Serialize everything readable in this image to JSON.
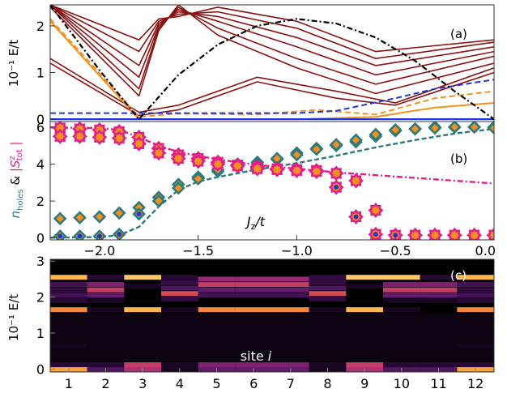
{
  "chart_data": [
    {
      "panel": "(a)",
      "type": "line",
      "ylabel": "10⁻¹ E/t",
      "xlim": [
        -2.25,
        0.0
      ],
      "ylim": [
        -0.05,
        2.45
      ],
      "yticks": [
        0,
        1,
        2
      ],
      "colors": {
        "spectrum": "#8b1010",
        "orange": "#f5901e",
        "blue": "#1f35d6",
        "black": "#000000"
      },
      "series": [
        {
          "style": "spectrum",
          "x": [
            -2.25,
            -1.8,
            -1.7,
            -1.6,
            -1.4,
            -1.0,
            -0.6,
            0.0
          ],
          "y": [
            2.4,
            0.5,
            1.9,
            2.45,
            1.8,
            1.1,
            0.55,
            1.2
          ]
        },
        {
          "style": "spectrum",
          "x": [
            -2.25,
            -1.8,
            -1.7,
            -1.6,
            -1.4,
            -1.0,
            -0.6,
            0.0
          ],
          "y": [
            2.45,
            0.65,
            1.95,
            2.4,
            1.95,
            1.3,
            0.75,
            1.35
          ]
        },
        {
          "style": "spectrum",
          "x": [
            -2.25,
            -1.8,
            -1.7,
            -1.6,
            -1.4,
            -1.0,
            -0.6,
            0.0
          ],
          "y": [
            2.45,
            0.9,
            2.0,
            2.35,
            2.1,
            1.55,
            0.95,
            1.45
          ]
        },
        {
          "style": "spectrum",
          "x": [
            -2.25,
            -1.8,
            -1.7,
            -1.6,
            -1.4,
            -1.0,
            -0.6,
            0.0
          ],
          "y": [
            2.45,
            1.15,
            2.05,
            2.3,
            2.2,
            1.75,
            1.15,
            1.55
          ]
        },
        {
          "style": "spectrum",
          "x": [
            -2.25,
            -1.8,
            -1.7,
            -1.6,
            -1.4,
            -1.0,
            -0.6,
            0.0
          ],
          "y": [
            2.45,
            1.45,
            2.1,
            2.25,
            2.3,
            1.95,
            1.3,
            1.65
          ]
        },
        {
          "style": "spectrum",
          "x": [
            -2.25,
            -1.8,
            -1.7,
            -1.6,
            -1.4,
            -1.0,
            -0.6,
            0.0
          ],
          "y": [
            2.45,
            1.7,
            2.15,
            2.2,
            2.4,
            2.1,
            1.45,
            1.7
          ]
        },
        {
          "style": "spectrum",
          "x": [
            -2.25,
            -1.8,
            -1.6,
            -1.2,
            -0.8,
            -0.5,
            0.0
          ],
          "y": [
            1.2,
            0.08,
            0.2,
            0.8,
            0.45,
            0.3,
            1.0
          ]
        },
        {
          "style": "spectrum",
          "x": [
            -2.25,
            -1.8,
            -1.6,
            -1.2,
            -0.8,
            -0.5,
            0.0
          ],
          "y": [
            1.3,
            0.15,
            0.3,
            0.9,
            0.6,
            0.35,
            1.1
          ]
        },
        {
          "style": "orange",
          "x": [
            -2.25,
            -1.8,
            -1.5,
            -1.0,
            -0.6,
            -0.3,
            0.0
          ],
          "y": [
            2.1,
            0.0,
            0.0,
            0.0,
            0.05,
            0.25,
            0.35
          ]
        },
        {
          "style": "orange-dashed",
          "x": [
            -2.25,
            -1.8,
            -1.6,
            -1.2,
            -0.9,
            -0.6,
            -0.3,
            0.0
          ],
          "y": [
            2.15,
            0.05,
            0.12,
            0.1,
            0.2,
            0.1,
            0.45,
            0.6
          ]
        },
        {
          "style": "blue",
          "x": [
            -2.25,
            0.0
          ],
          "y": [
            0.0,
            0.0
          ]
        },
        {
          "style": "blue-dashed",
          "x": [
            -2.25,
            -1.0,
            -0.8,
            -0.5,
            -0.3,
            0.0
          ],
          "y": [
            0.13,
            0.13,
            0.18,
            0.45,
            0.65,
            0.85
          ]
        },
        {
          "style": "black-dashdot",
          "x": [
            -2.25,
            -2.0,
            -1.8,
            -1.6,
            -1.4,
            -1.2,
            -1.0,
            -0.8,
            -0.6,
            -0.4,
            -0.2,
            0.0
          ],
          "y": [
            2.45,
            1.05,
            0.0,
            0.95,
            1.6,
            2.0,
            2.15,
            2.05,
            1.75,
            1.25,
            0.6,
            0.0
          ]
        }
      ]
    },
    {
      "panel": "(b)",
      "type": "scatter",
      "ylabel_parts": [
        "n",
        "holes",
        " & ",
        "|S",
        "z",
        "tot",
        "|"
      ],
      "xlabel": "J_z/t",
      "xlim": [
        -2.25,
        0.0
      ],
      "ylim": [
        -0.1,
        6.3
      ],
      "yticks": [
        0,
        2,
        4,
        6
      ],
      "xticks": [
        -2.0,
        -1.5,
        -1.0,
        -0.5,
        0.0
      ],
      "xticklabels": [
        "−2.0",
        "−1.5",
        "−1.0",
        "−0.5",
        "0.0"
      ],
      "colors": {
        "diamond": "#2e7a7a",
        "diamondFill": "#f5901e",
        "star": "#e0208a",
        "starFill": "#f5901e",
        "blueDot": "#1f35d6",
        "tealLine": "#2e7a7a",
        "pinkLine": "#e0208a"
      },
      "series": [
        {
          "name": "n_holes",
          "marker": "diamond",
          "x": [
            -2.2,
            -2.1,
            -2.0,
            -1.9,
            -1.8,
            -1.7,
            -1.6,
            -1.5,
            -1.4,
            -1.3,
            -1.2,
            -1.1,
            -1.0,
            -0.9,
            -0.8,
            -0.7,
            -0.6,
            -0.5,
            -0.4,
            -0.3,
            -0.2,
            -0.1,
            0.0
          ],
          "y": [
            1.05,
            1.1,
            1.15,
            1.35,
            1.65,
            2.2,
            2.9,
            3.3,
            3.6,
            4.0,
            4.1,
            4.25,
            4.6,
            4.85,
            5.0,
            5.2,
            5.5,
            5.8,
            5.9,
            6.0,
            6.0,
            6.0,
            6.0
          ]
        },
        {
          "name": "n_holes_ground",
          "marker": "diamond",
          "x": [
            -2.2,
            -2.1,
            -2.0,
            -1.9,
            -1.8,
            -1.7,
            -1.6,
            -1.5,
            -1.4,
            -1.3,
            -1.2,
            -1.1,
            -1.0,
            -0.9,
            -0.8,
            -0.7,
            -0.6,
            -0.5,
            -0.4,
            -0.3,
            -0.2,
            -0.1,
            0.0
          ],
          "y": [
            0.1,
            0.1,
            0.1,
            0.2,
            1.3,
            2.0,
            2.7,
            3.2,
            3.7,
            3.9,
            4.0,
            4.3,
            4.5,
            4.8,
            5.05,
            5.3,
            5.6,
            5.85,
            5.9,
            5.95,
            6.0,
            6.0,
            5.95
          ]
        },
        {
          "name": "Sz_tot",
          "marker": "star",
          "x": [
            -2.2,
            -2.1,
            -2.0,
            -1.9,
            -1.8,
            -1.7,
            -1.6,
            -1.5,
            -1.4,
            -1.3,
            -1.2,
            -1.1,
            -1.0,
            -0.9,
            -0.8,
            -0.7,
            -0.6,
            -0.5,
            -0.4,
            -0.3,
            -0.2,
            -0.1,
            0.0
          ],
          "y": [
            5.95,
            5.9,
            5.85,
            5.75,
            5.45,
            4.85,
            4.5,
            4.3,
            4.1,
            3.95,
            3.85,
            3.75,
            3.7,
            3.65,
            3.5,
            3.1,
            1.5,
            0.15,
            0.15,
            0.15,
            0.15,
            0.15,
            0.15
          ]
        },
        {
          "name": "Sz_tot_ground",
          "marker": "star",
          "x": [
            -2.2,
            -2.1,
            -2.0,
            -1.9,
            -1.8,
            -1.7,
            -1.6,
            -1.5,
            -1.4,
            -1.3,
            -1.2,
            -1.1,
            -1.0,
            -0.9,
            -0.8,
            -0.7,
            -0.6,
            -0.5,
            -0.4,
            -0.3,
            -0.2,
            -0.1,
            0.0
          ],
          "y": [
            5.5,
            5.5,
            5.45,
            5.4,
            5.1,
            4.6,
            4.3,
            4.15,
            4.0,
            3.9,
            3.75,
            3.7,
            3.65,
            3.6,
            2.75,
            1.15,
            0.2,
            0.15,
            0.15,
            0.15,
            0.15,
            0.15,
            0.15
          ]
        },
        {
          "name": "n_holes_line",
          "line": "tealDashed",
          "x": [
            -2.25,
            -2.0,
            -1.9,
            -1.8,
            -1.7,
            -1.6,
            -1.5,
            -1.4,
            -1.2,
            -1.0,
            -0.8,
            -0.6,
            -0.4,
            -0.2,
            0.0
          ],
          "y": [
            0.02,
            0.05,
            0.15,
            0.6,
            1.7,
            2.6,
            3.05,
            3.3,
            3.7,
            4.05,
            4.45,
            4.9,
            5.3,
            5.65,
            5.9
          ]
        },
        {
          "name": "Sz_line",
          "line": "pinkDashDot",
          "x": [
            -2.25,
            -2.0,
            -1.9,
            -1.8,
            -1.7,
            -1.6,
            -1.4,
            -1.2,
            -1.0,
            -0.8,
            -0.6,
            -0.4,
            -0.2,
            0.0
          ],
          "y": [
            5.98,
            5.95,
            5.85,
            5.45,
            5.0,
            4.65,
            4.25,
            3.95,
            3.75,
            3.55,
            3.4,
            3.25,
            3.1,
            2.95
          ]
        }
      ]
    },
    {
      "panel": "(c)",
      "type": "heatmap",
      "ylabel": "10⁻¹ E/t",
      "xlabel": "site i",
      "xticks": [
        1,
        2,
        3,
        4,
        5,
        6,
        7,
        8,
        9,
        10,
        11,
        12
      ],
      "yticks": [
        0,
        1,
        2,
        3
      ],
      "ylim": [
        -0.08,
        3.05
      ],
      "colormap": [
        "#000000",
        "#2a0a3a",
        "#5a1a6a",
        "#b0307a",
        "#e8603a",
        "#ffb040",
        "#ffe8a0"
      ],
      "columns": [
        {
          "site": 1,
          "bands": [
            [
              0.0,
              0.8
            ],
            [
              0.12,
              0.15
            ],
            [
              0.65,
              0.08
            ],
            [
              1.65,
              0.75
            ],
            [
              1.9,
              0.15
            ],
            [
              2.05,
              0.25
            ],
            [
              2.2,
              0.2
            ],
            [
              2.35,
              0.25
            ],
            [
              2.55,
              0.85
            ]
          ]
        },
        {
          "site": 2,
          "bands": [
            [
              0.0,
              0.3
            ],
            [
              0.12,
              0.15
            ],
            [
              1.65,
              0.1
            ],
            [
              1.9,
              0.1
            ],
            [
              2.05,
              0.35
            ],
            [
              2.2,
              0.55
            ],
            [
              2.35,
              0.4
            ],
            [
              2.55,
              0.15
            ]
          ]
        },
        {
          "site": 3,
          "bands": [
            [
              0.0,
              0.5
            ],
            [
              0.12,
              0.55
            ],
            [
              1.65,
              0.85
            ],
            [
              2.55,
              0.9
            ],
            [
              2.3,
              0.1
            ]
          ]
        },
        {
          "site": 4,
          "bands": [
            [
              0.0,
              0.1
            ],
            [
              0.12,
              0.1
            ],
            [
              1.65,
              0.1
            ],
            [
              1.95,
              0.2
            ],
            [
              2.1,
              0.6
            ],
            [
              2.25,
              0.3
            ],
            [
              2.4,
              0.2
            ],
            [
              2.55,
              0.15
            ]
          ]
        },
        {
          "site": 5,
          "bands": [
            [
              0.0,
              0.35
            ],
            [
              0.12,
              0.4
            ],
            [
              1.65,
              0.75
            ],
            [
              2.05,
              0.25
            ],
            [
              2.2,
              0.35
            ],
            [
              2.35,
              0.55
            ],
            [
              2.5,
              0.45
            ]
          ]
        },
        {
          "site": 6,
          "bands": [
            [
              0.0,
              0.35
            ],
            [
              0.12,
              0.4
            ],
            [
              1.65,
              0.75
            ],
            [
              2.05,
              0.25
            ],
            [
              2.2,
              0.35
            ],
            [
              2.35,
              0.55
            ],
            [
              2.5,
              0.45
            ]
          ]
        },
        {
          "site": 7,
          "bands": [
            [
              0.0,
              0.35
            ],
            [
              0.12,
              0.4
            ],
            [
              1.65,
              0.75
            ],
            [
              2.05,
              0.25
            ],
            [
              2.2,
              0.35
            ],
            [
              2.35,
              0.55
            ],
            [
              2.5,
              0.45
            ]
          ]
        },
        {
          "site": 8,
          "bands": [
            [
              0.0,
              0.1
            ],
            [
              0.12,
              0.1
            ],
            [
              1.65,
              0.1
            ],
            [
              1.95,
              0.2
            ],
            [
              2.1,
              0.6
            ],
            [
              2.25,
              0.3
            ],
            [
              2.4,
              0.2
            ],
            [
              2.55,
              0.2
            ]
          ]
        },
        {
          "site": 9,
          "bands": [
            [
              0.0,
              0.5
            ],
            [
              0.12,
              0.55
            ],
            [
              1.65,
              0.85
            ],
            [
              2.55,
              0.9
            ],
            [
              2.3,
              0.1
            ]
          ]
        },
        {
          "site": 10,
          "bands": [
            [
              0.0,
              0.3
            ],
            [
              0.12,
              0.15
            ],
            [
              1.65,
              0.1
            ],
            [
              1.9,
              0.1
            ],
            [
              2.05,
              0.35
            ],
            [
              2.2,
              0.55
            ],
            [
              2.35,
              0.4
            ],
            [
              2.55,
              0.9
            ]
          ]
        },
        {
          "site": 11,
          "bands": [
            [
              0.0,
              0.3
            ],
            [
              0.12,
              0.15
            ],
            [
              1.9,
              0.1
            ],
            [
              2.05,
              0.35
            ],
            [
              2.2,
              0.55
            ],
            [
              2.35,
              0.4
            ],
            [
              2.55,
              0.15
            ]
          ]
        },
        {
          "site": 12,
          "bands": [
            [
              0.0,
              0.8
            ],
            [
              0.12,
              0.15
            ],
            [
              0.65,
              0.08
            ],
            [
              1.65,
              0.75
            ],
            [
              1.9,
              0.15
            ],
            [
              2.05,
              0.25
            ],
            [
              2.2,
              0.2
            ],
            [
              2.35,
              0.25
            ],
            [
              2.55,
              0.85
            ]
          ]
        }
      ]
    }
  ]
}
